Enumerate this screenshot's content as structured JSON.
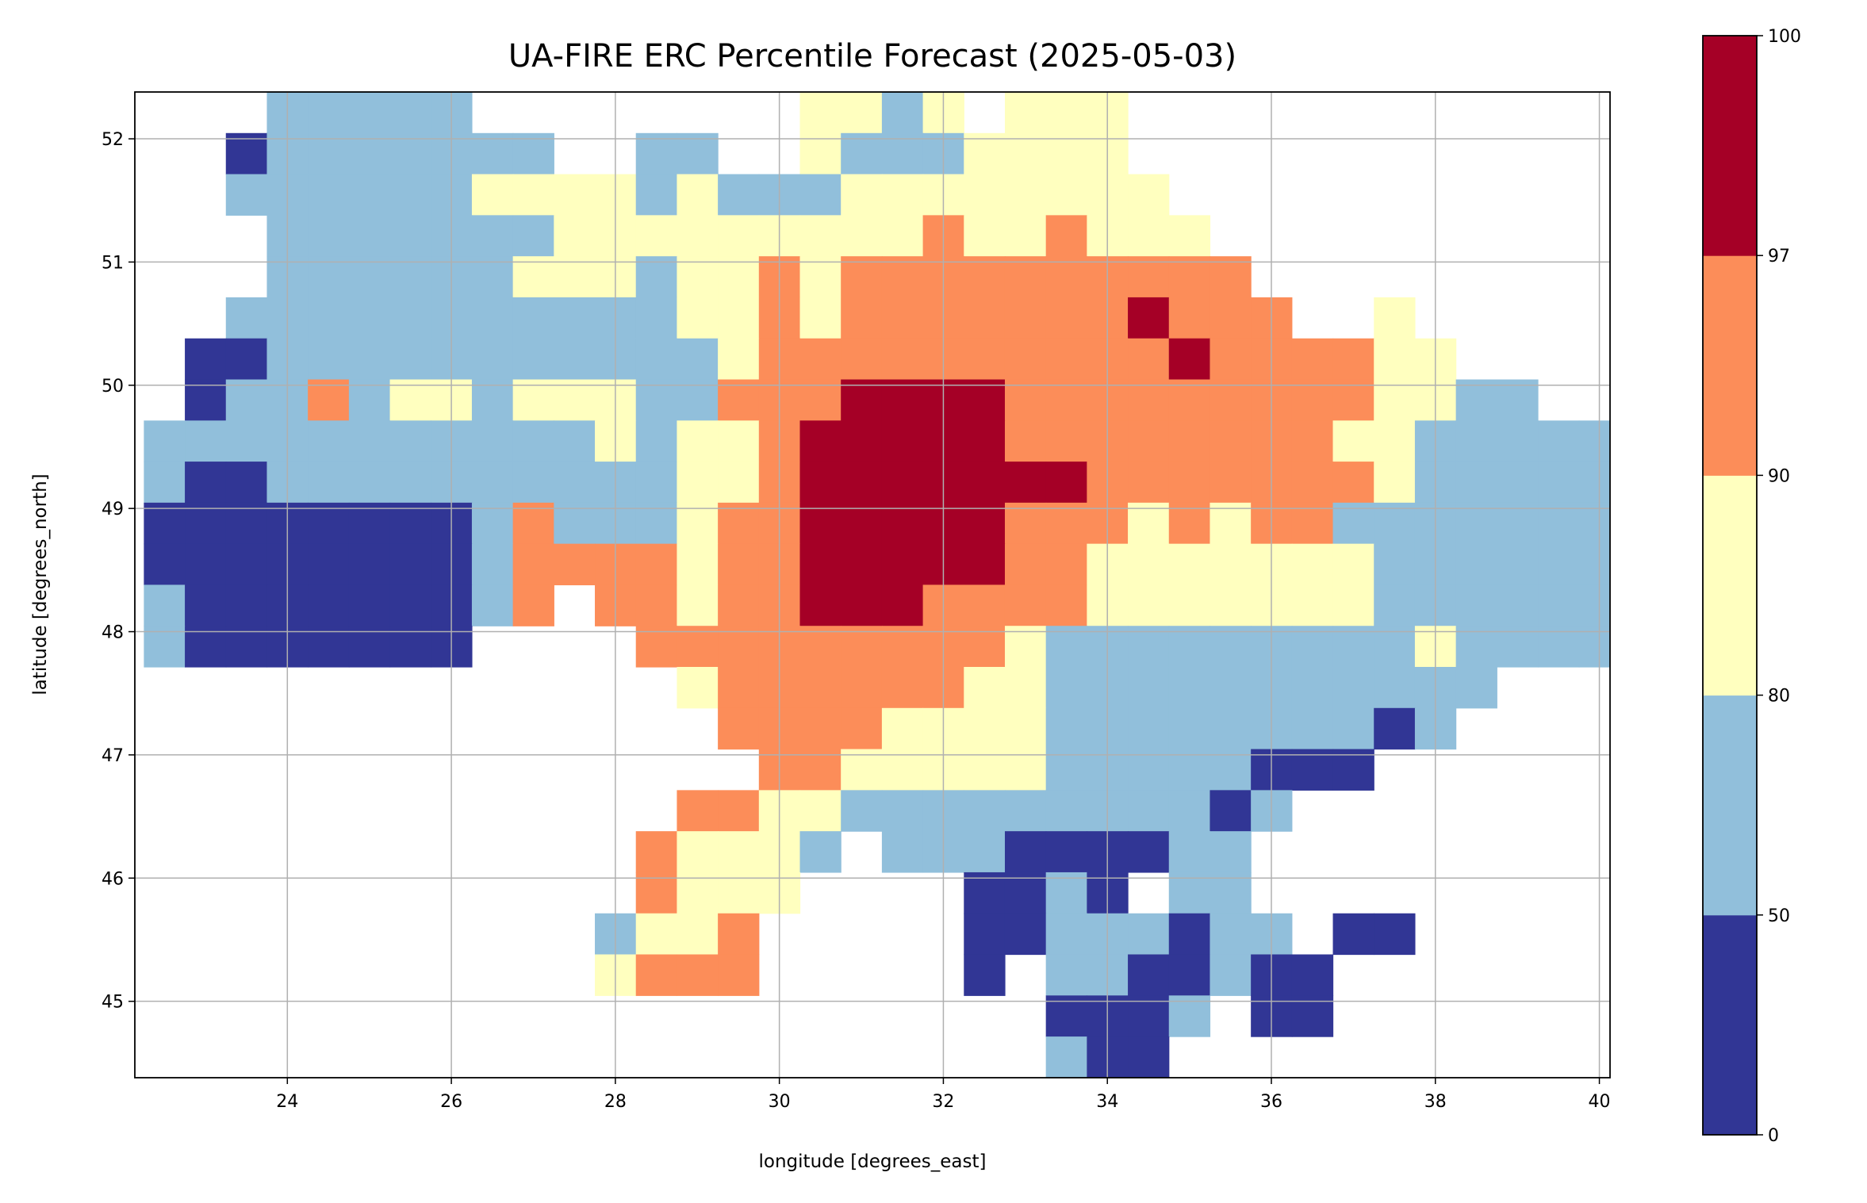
{
  "chart_data": {
    "type": "heatmap",
    "title": "UA-FIRE ERC Percentile Forecast (2025-05-03)",
    "xlabel": "longitude [degrees_east]",
    "ylabel": "latitude [degrees_north]",
    "xlim": [
      22.14,
      40.13
    ],
    "ylim": [
      44.38,
      52.38
    ],
    "grid": true,
    "xticks": [
      "24",
      "26",
      "28",
      "30",
      "32",
      "34",
      "36",
      "38",
      "40"
    ],
    "xtick_values": [
      24,
      26,
      28,
      30,
      32,
      34,
      36,
      38,
      40
    ],
    "yticks": [
      "45",
      "46",
      "47",
      "48",
      "49",
      "50",
      "51",
      "52"
    ],
    "ytick_values": [
      45,
      46,
      47,
      48,
      49,
      50,
      51,
      52
    ],
    "colorbar": {
      "bounds": [
        0,
        50,
        80,
        90,
        97,
        100
      ],
      "labels": [
        "0",
        "50",
        "80",
        "90",
        "97",
        "100"
      ],
      "colors": [
        "#313695",
        "#91bfdb",
        "#ffffbf",
        "#fc8d59",
        "#a50026"
      ]
    },
    "grid_cells": {
      "lon_start": 22.25,
      "lon_step": 0.5,
      "lat_start": 52.38,
      "lat_step": -0.3333,
      "legend": "digit = colorbar class index (0:<50, 1:50-80, 2:80-90, 3:90-97, 4:97-100), '.' = no data",
      "rows": [
        "...11111........2212.222............",
        "..01111111..11..21112222............",
        "..11111122221211122222222............",
        "...11111112222222223223222..........",
        "...111111222122323333333333.........",
        "..11111111111223233333334333..2.....",
        ".0011111111111233333333334333322....",
        ".011312212221133344443333333332211..",
        "111111111112122344444333333332211111",
        "100111111111122344444443333333211111",
        "000000001311123344444333232331111111",
        "000000001333323344444332222222111111",
        "1000000013.3323344433332222222111111",
        "10000000....333333333211111111121111",
        ".............23333332211111111111...",
        "..............333322221111111101....",
        "...............332222211111000......",
        ".............332211111111101........",
        "............32221.111000011.........",
        "............3222....0010 11..........",
        "...........1223.....00111011 00......",
        "...........2333.....0.1100100.......",
        "......................0001.00.......",
        "......................100..........."
      ]
    }
  }
}
